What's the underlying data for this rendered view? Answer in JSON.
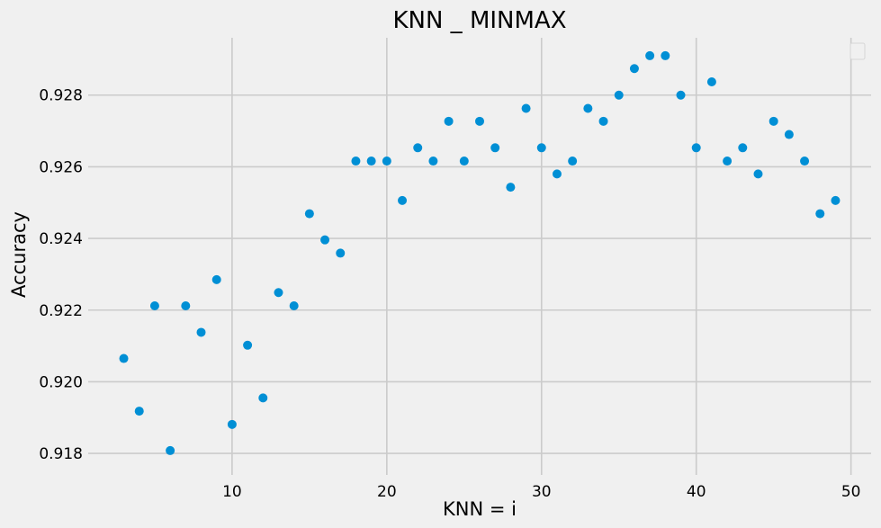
{
  "chart_data": {
    "type": "scatter",
    "title": "KNN _ MINMAX",
    "xlabel": "KNN = i",
    "ylabel": "Accuracy",
    "xlim": [
      0.7,
      51.3
    ],
    "ylim": [
      0.9174,
      0.9296
    ],
    "xticks": [
      10,
      20,
      30,
      40,
      50
    ],
    "yticks": [
      0.918,
      0.92,
      0.922,
      0.924,
      0.926,
      0.928
    ],
    "grid": true,
    "legend": "top-right",
    "point_color": "#008fd5",
    "grid_color": "#cbcbcb",
    "background": "#f0f0f0",
    "series": [
      {
        "x": [
          3,
          4,
          5,
          6,
          7,
          8,
          9,
          10,
          11,
          12,
          13,
          14,
          15,
          16,
          17,
          18,
          19,
          20,
          21,
          22,
          23,
          24,
          25,
          26,
          27,
          28,
          29,
          30,
          31,
          32,
          33,
          34,
          35,
          36,
          37,
          38,
          39,
          40,
          41,
          42,
          43,
          44,
          45,
          46,
          47,
          48,
          49
        ],
        "y": [
          0.92065,
          0.91918,
          0.92212,
          0.91808,
          0.92212,
          0.92138,
          0.92285,
          0.91881,
          0.92102,
          0.91955,
          0.92249,
          0.92212,
          0.92469,
          0.92396,
          0.92359,
          0.92616,
          0.92616,
          0.92616,
          0.92506,
          0.92653,
          0.92616,
          0.92727,
          0.92616,
          0.92727,
          0.92653,
          0.92543,
          0.92763,
          0.92653,
          0.9258,
          0.92616,
          0.92763,
          0.92727,
          0.928,
          0.92874,
          0.9291,
          0.9291,
          0.928,
          0.92653,
          0.92837,
          0.92616,
          0.92653,
          0.9258,
          0.92727,
          0.9269,
          0.92616,
          0.92469,
          0.92506
        ]
      }
    ]
  }
}
